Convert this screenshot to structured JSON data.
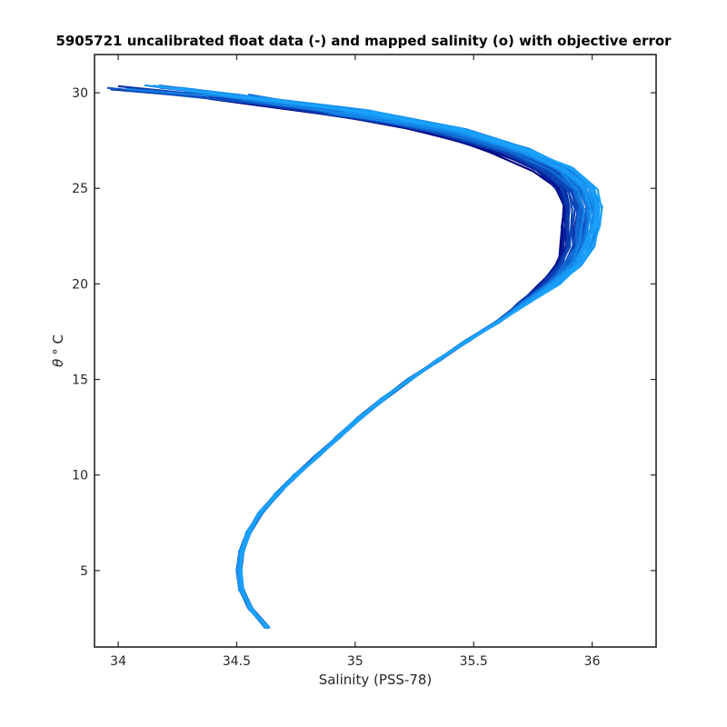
{
  "chart_data": {
    "type": "line",
    "title": "5905721 uncalibrated float data (-) and mapped salinity (o) with objective error",
    "xlabel": "Salinity (PSS-78)",
    "ylabel_symbol": "θ",
    "ylabel_unit": "° C",
    "xlim": [
      33.9,
      36.27
    ],
    "ylim": [
      1.0,
      32.0
    ],
    "xticks": [
      34,
      34.5,
      35,
      35.5,
      36
    ],
    "xtick_labels": [
      "34",
      "34.5",
      "35",
      "35.5",
      "36"
    ],
    "yticks": [
      5,
      10,
      15,
      20,
      25,
      30
    ],
    "ytick_labels": [
      "5",
      "10",
      "15",
      "20",
      "25",
      "30"
    ],
    "grid": false,
    "legend": "none",
    "colormap": {
      "from": "#000080",
      "to": "#1aa3ff"
    },
    "profile_count": 50,
    "mean_profile": {
      "theta": [
        2.0,
        3.0,
        4.0,
        5.0,
        6.0,
        7.0,
        8.0,
        9.0,
        10.0,
        11.0,
        12.0,
        13.0,
        14.0,
        15.0,
        16.0,
        17.0,
        18.0,
        19.0,
        20.0,
        21.0,
        22.0,
        23.0,
        24.0,
        25.0,
        26.0,
        27.0,
        28.0,
        29.0,
        29.8,
        30.3
      ],
      "salinity": [
        34.63,
        34.56,
        34.52,
        34.51,
        34.52,
        34.55,
        34.6,
        34.67,
        34.75,
        34.84,
        34.93,
        35.02,
        35.12,
        35.23,
        35.35,
        35.47,
        35.6,
        35.71,
        35.82,
        35.9,
        35.94,
        35.95,
        35.96,
        35.93,
        35.84,
        35.66,
        35.38,
        35.0,
        34.6,
        34.25
      ]
    }
  }
}
